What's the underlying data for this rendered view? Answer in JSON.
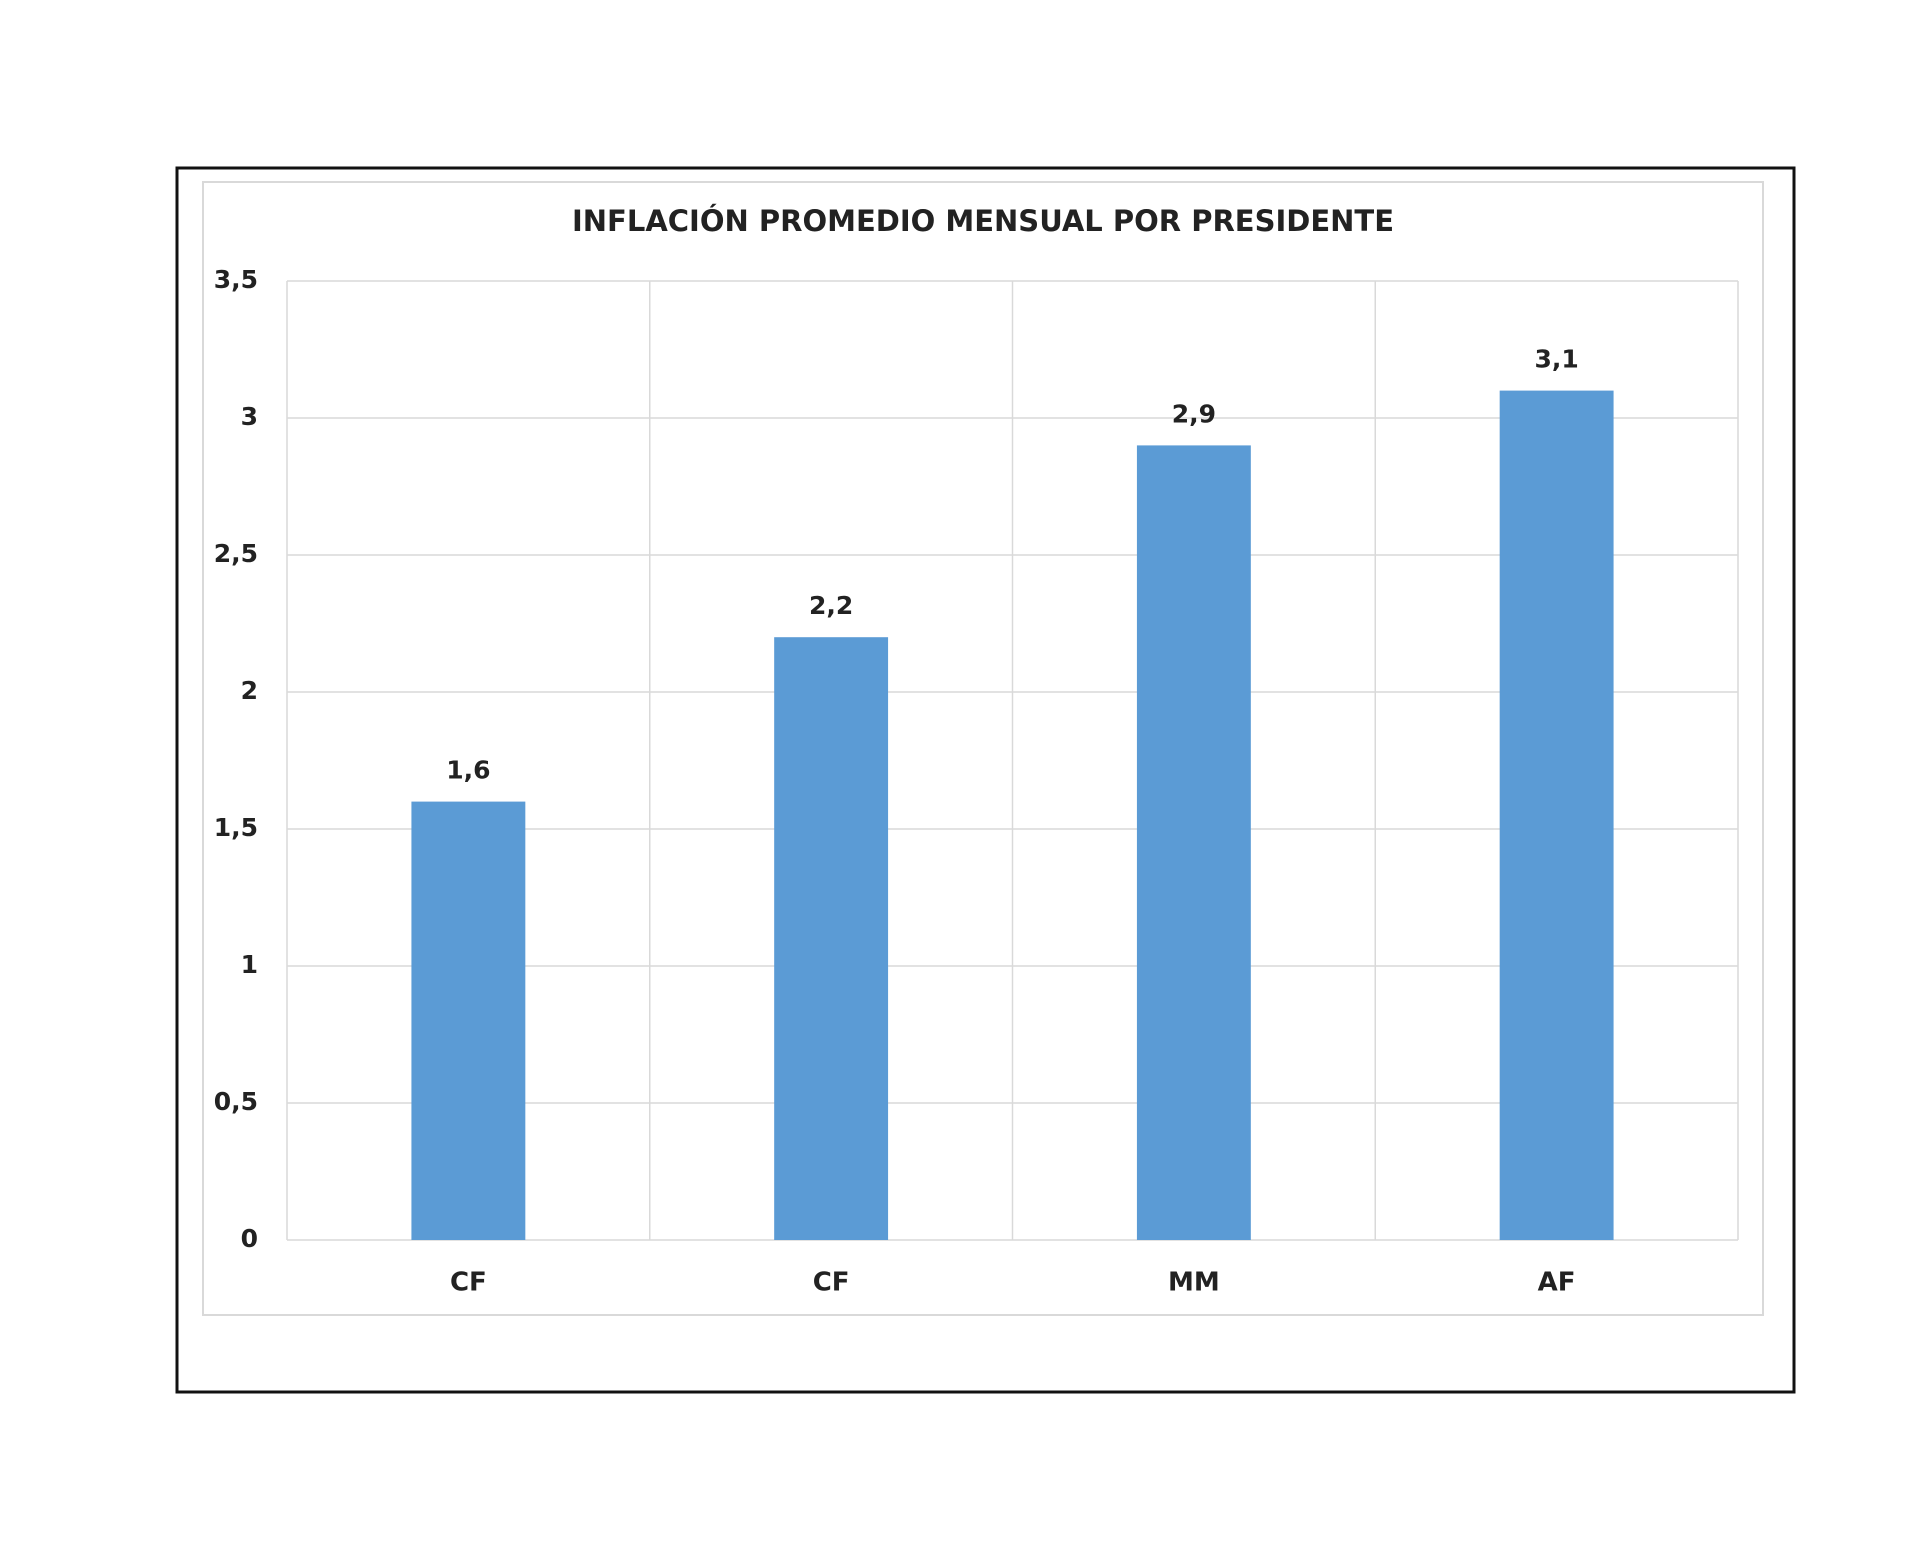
{
  "chart_data": {
    "type": "bar",
    "title": "INFLACIÓN PROMEDIO MENSUAL POR PRESIDENTE",
    "categories": [
      "CF",
      "CF",
      "MM",
      "AF"
    ],
    "values": [
      1.6,
      2.2,
      2.9,
      3.1
    ],
    "value_labels": [
      "1,6",
      "2,2",
      "2,9",
      "3,1"
    ],
    "color": "#5b9bd5",
    "ylim": [
      0,
      3.5
    ],
    "yticks": [
      0,
      {
        "value": 0.5,
        "label": "0,5"
      },
      1,
      {
        "value": 1.5,
        "label": "1,5"
      },
      2,
      {
        "value": 2.5,
        "label": "2,5"
      },
      3,
      {
        "value": 3.5,
        "label": "3,5"
      }
    ],
    "grid": true
  }
}
